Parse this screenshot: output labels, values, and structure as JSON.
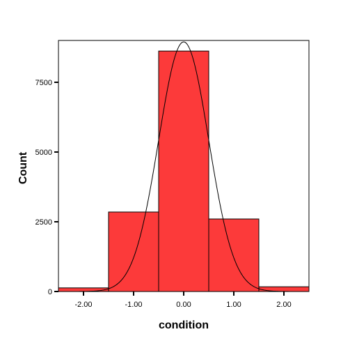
{
  "chart_data": {
    "type": "bar",
    "title": "",
    "xlabel": "condition",
    "ylabel": "Count",
    "bins": [
      {
        "from": -2.5,
        "to": -1.5,
        "value": 130
      },
      {
        "from": -1.5,
        "to": -0.5,
        "value": 2850
      },
      {
        "from": -0.5,
        "to": 0.5,
        "value": 8620
      },
      {
        "from": 0.5,
        "to": 1.5,
        "value": 2600
      },
      {
        "from": 1.5,
        "to": 2.5,
        "value": 170
      }
    ],
    "normal_curve": {
      "mean": 0.0,
      "sd": 0.5,
      "peak": 8950
    },
    "xlim": [
      -2.5,
      2.5
    ],
    "ylim": [
      0,
      9000
    ],
    "xticks": [
      -2.0,
      -1.0,
      0.0,
      1.0,
      2.0
    ],
    "xtick_labels": [
      "-2.00",
      "-1.00",
      "0.00",
      "1.00",
      "2.00"
    ],
    "yticks": [
      0,
      2500,
      5000,
      7500
    ],
    "ytick_labels": [
      "0",
      "2500",
      "5000",
      "7500"
    ],
    "bar_color": "#fc3a3a",
    "grid": false,
    "legend": "none"
  }
}
